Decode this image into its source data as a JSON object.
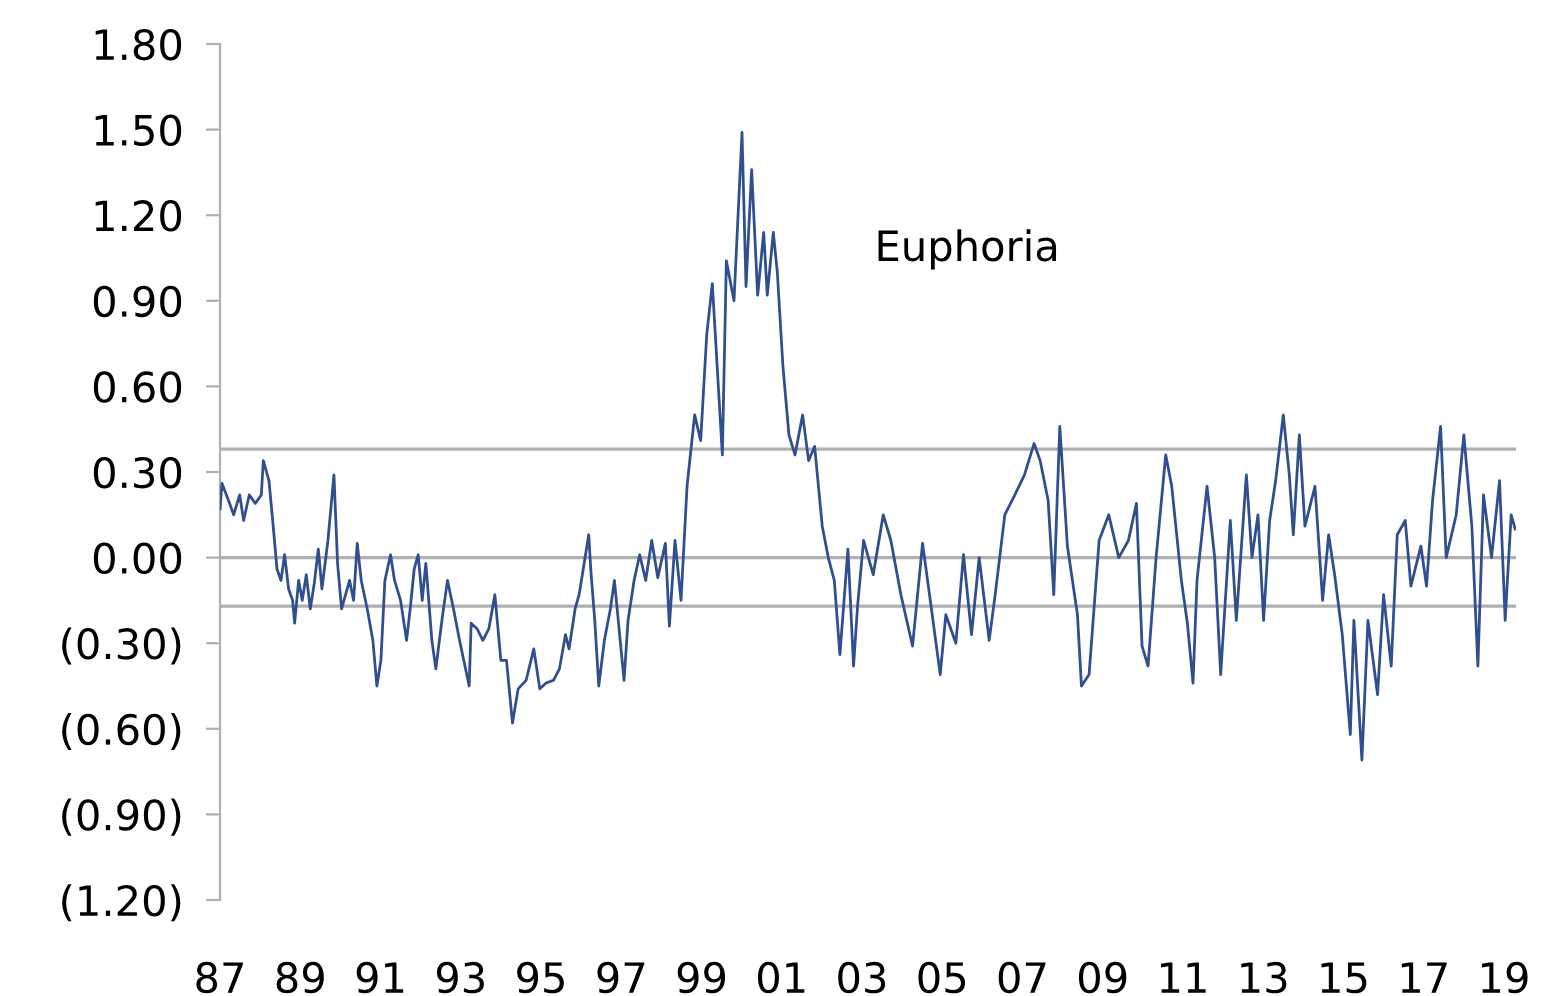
{
  "chart_data": {
    "type": "line",
    "x": [
      1987.0,
      1987.05,
      1987.24,
      1987.34,
      1987.49,
      1987.59,
      1987.73,
      1987.88,
      1988.03,
      1988.08,
      1988.22,
      1988.32,
      1988.42,
      1988.52,
      1988.61,
      1988.71,
      1988.81,
      1988.86,
      1988.96,
      1989.05,
      1989.15,
      1989.25,
      1989.35,
      1989.45,
      1989.54,
      1989.69,
      1989.84,
      1989.93,
      1990.03,
      1990.13,
      1990.23,
      1990.33,
      1990.42,
      1990.52,
      1990.67,
      1990.81,
      1990.91,
      1991.01,
      1991.11,
      1991.25,
      1991.35,
      1991.5,
      1991.65,
      1991.74,
      1991.84,
      1991.94,
      1992.04,
      1992.13,
      1992.28,
      1992.38,
      1992.53,
      1992.67,
      1992.82,
      1992.97,
      1993.21,
      1993.26,
      1993.41,
      1993.55,
      1993.7,
      1993.85,
      1994.0,
      1994.14,
      1994.29,
      1994.43,
      1994.63,
      1994.82,
      1994.97,
      1995.12,
      1995.31,
      1995.46,
      1995.61,
      1995.7,
      1995.85,
      1995.95,
      1996.19,
      1996.24,
      1996.34,
      1996.44,
      1996.58,
      1996.73,
      1996.83,
      1997.07,
      1997.17,
      1997.32,
      1997.46,
      1997.61,
      1997.76,
      1997.91,
      1998.1,
      1998.2,
      1998.34,
      1998.49,
      1998.64,
      1998.83,
      1998.98,
      1999.13,
      1999.27,
      1999.52,
      1999.62,
      1999.81,
      2000.01,
      2000.11,
      2000.25,
      2000.4,
      2000.55,
      2000.64,
      2000.79,
      2000.89,
      2001.03,
      2001.18,
      2001.33,
      2001.52,
      2001.67,
      2001.82,
      2002.01,
      2002.16,
      2002.31,
      2002.45,
      2002.65,
      2002.79,
      2002.89,
      2003.04,
      2003.28,
      2003.53,
      2003.72,
      2003.97,
      2004.26,
      2004.51,
      2004.75,
      2004.95,
      2005.09,
      2005.34,
      2005.53,
      2005.73,
      2005.92,
      2006.17,
      2006.32,
      2006.56,
      2006.81,
      2007.05,
      2007.29,
      2007.44,
      2007.64,
      2007.78,
      2007.93,
      2008.12,
      2008.37,
      2008.47,
      2008.66,
      2008.91,
      2009.15,
      2009.4,
      2009.64,
      2009.84,
      2009.98,
      2010.13,
      2010.33,
      2010.57,
      2010.72,
      2010.96,
      2011.11,
      2011.25,
      2011.35,
      2011.6,
      2011.79,
      2011.94,
      2012.18,
      2012.33,
      2012.58,
      2012.72,
      2012.87,
      2013.01,
      2013.16,
      2013.31,
      2013.5,
      2013.65,
      2013.75,
      2013.9,
      2014.04,
      2014.29,
      2014.48,
      2014.63,
      2014.78,
      2014.97,
      2015.17,
      2015.26,
      2015.46,
      2015.61,
      2015.85,
      2016.0,
      2016.19,
      2016.34,
      2016.54,
      2016.68,
      2016.93,
      2017.07,
      2017.22,
      2017.42,
      2017.56,
      2017.81,
      2018.0,
      2018.2,
      2018.35,
      2018.49,
      2018.69,
      2018.89,
      2019.03,
      2019.18,
      2019.28
    ],
    "series": [
      {
        "color": "#2f4f8f",
        "values": [
          0.17,
          0.26,
          0.19,
          0.15,
          0.22,
          0.13,
          0.22,
          0.19,
          0.22,
          0.34,
          0.27,
          0.12,
          -0.04,
          -0.08,
          0.01,
          -0.11,
          -0.15,
          -0.23,
          -0.08,
          -0.15,
          -0.06,
          -0.18,
          -0.09,
          0.03,
          -0.11,
          0.06,
          0.29,
          -0.02,
          -0.18,
          -0.13,
          -0.08,
          -0.15,
          0.05,
          -0.08,
          -0.18,
          -0.29,
          -0.45,
          -0.36,
          -0.08,
          0.01,
          -0.08,
          -0.15,
          -0.29,
          -0.18,
          -0.04,
          0.01,
          -0.15,
          -0.02,
          -0.29,
          -0.39,
          -0.22,
          -0.08,
          -0.18,
          -0.29,
          -0.45,
          -0.23,
          -0.25,
          -0.29,
          -0.25,
          -0.13,
          -0.36,
          -0.36,
          -0.58,
          -0.46,
          -0.43,
          -0.32,
          -0.46,
          -0.44,
          -0.43,
          -0.39,
          -0.27,
          -0.32,
          -0.18,
          -0.13,
          0.08,
          -0.04,
          -0.22,
          -0.45,
          -0.29,
          -0.18,
          -0.08,
          -0.43,
          -0.22,
          -0.08,
          0.01,
          -0.08,
          0.06,
          -0.07,
          0.05,
          -0.24,
          0.06,
          -0.15,
          0.25,
          0.5,
          0.41,
          0.78,
          0.96,
          0.36,
          1.04,
          0.9,
          1.49,
          0.95,
          1.36,
          0.92,
          1.14,
          0.92,
          1.14,
          1.0,
          0.67,
          0.43,
          0.36,
          0.5,
          0.34,
          0.39,
          0.11,
          0.0,
          -0.08,
          -0.34,
          0.03,
          -0.38,
          -0.17,
          0.06,
          -0.06,
          0.15,
          0.06,
          -0.13,
          -0.31,
          0.05,
          -0.2,
          -0.41,
          -0.2,
          -0.3,
          0.01,
          -0.27,
          0.0,
          -0.29,
          -0.13,
          0.15,
          0.22,
          0.29,
          0.4,
          0.34,
          0.2,
          -0.13,
          0.46,
          0.04,
          -0.2,
          -0.45,
          -0.41,
          0.06,
          0.15,
          0.0,
          0.06,
          0.19,
          -0.31,
          -0.38,
          0.0,
          0.36,
          0.25,
          -0.08,
          -0.23,
          -0.44,
          -0.08,
          0.25,
          0.0,
          -0.41,
          0.13,
          -0.22,
          0.29,
          0.0,
          0.15,
          -0.22,
          0.13,
          0.27,
          0.5,
          0.29,
          0.08,
          0.43,
          0.11,
          0.25,
          -0.15,
          0.08,
          -0.06,
          -0.27,
          -0.62,
          -0.22,
          -0.71,
          -0.22,
          -0.48,
          -0.13,
          -0.38,
          0.08,
          0.13,
          -0.1,
          0.04,
          -0.1,
          0.2,
          0.46,
          0.0,
          0.15,
          0.43,
          0.11,
          -0.38,
          0.22,
          0.0,
          0.27,
          -0.22,
          0.15,
          0.1
        ]
      }
    ],
    "xlim": [
      1987,
      2019.3
    ],
    "xticks": [
      {
        "value": 1987,
        "label": "87"
      },
      {
        "value": 1989,
        "label": "89"
      },
      {
        "value": 1991,
        "label": "91"
      },
      {
        "value": 1993,
        "label": "93"
      },
      {
        "value": 1995,
        "label": "95"
      },
      {
        "value": 1997,
        "label": "97"
      },
      {
        "value": 1999,
        "label": "99"
      },
      {
        "value": 2001,
        "label": "01"
      },
      {
        "value": 2003,
        "label": "03"
      },
      {
        "value": 2005,
        "label": "05"
      },
      {
        "value": 2007,
        "label": "07"
      },
      {
        "value": 2009,
        "label": "09"
      },
      {
        "value": 2011,
        "label": "11"
      },
      {
        "value": 2013,
        "label": "13"
      },
      {
        "value": 2015,
        "label": "15"
      },
      {
        "value": 2017,
        "label": "17"
      },
      {
        "value": 2019,
        "label": "19"
      }
    ],
    "ylim": [
      -1.2,
      1.8
    ],
    "yticks": [
      {
        "value": 1.8,
        "label": "1.80"
      },
      {
        "value": 1.5,
        "label": "1.50"
      },
      {
        "value": 1.2,
        "label": "1.20"
      },
      {
        "value": 0.9,
        "label": "0.90"
      },
      {
        "value": 0.6,
        "label": "0.60"
      },
      {
        "value": 0.3,
        "label": "0.30"
      },
      {
        "value": 0,
        "label": "0.00"
      },
      {
        "value": -0.3,
        "label": "(0.30)"
      },
      {
        "value": -0.6,
        "label": "(0.60)"
      },
      {
        "value": -0.9,
        "label": "(0.90)"
      },
      {
        "value": -1.2,
        "label": "(1.20)"
      }
    ],
    "ref_lines": [
      {
        "axis": "y",
        "value": 0.38,
        "color": "#b0b0b0"
      },
      {
        "axis": "y",
        "value": 0,
        "color": "#b0b0b0"
      },
      {
        "axis": "y",
        "value": -0.17,
        "color": "#b0b0b0"
      }
    ],
    "annotations": [
      "Euphoria"
    ],
    "grid": false
  }
}
